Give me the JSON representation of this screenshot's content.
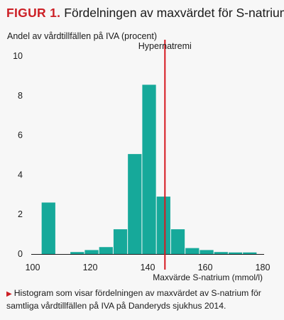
{
  "figure": {
    "label": "FIGUR 1.",
    "title": "Fördelningen av maxvärdet för S-natrium",
    "caption_marker": "▶",
    "caption": "Histogram som visar fördelningen av maxvärdet av S-natrium för samtliga vårdtillfällen på IVA på Danderyds sjukhus 2014."
  },
  "colors": {
    "bars": "#16a99a",
    "threshold": "#d71920",
    "accent": "#cc1f25"
  },
  "chart_data": {
    "type": "bar",
    "title": "",
    "ylabel": "Andel av vårdtillfällen på IVA (procent)",
    "xlabel": "Maxvärde S-natrium (mmol/l)",
    "xlim": [
      100,
      180
    ],
    "ylim": [
      0,
      10
    ],
    "x_ticks": [
      100,
      120,
      140,
      160,
      180
    ],
    "y_ticks": [
      0,
      2,
      4,
      6,
      8,
      10
    ],
    "bin_width": 5,
    "bins": [
      {
        "start": 103,
        "value": 2.6
      },
      {
        "start": 113,
        "value": 0.1
      },
      {
        "start": 118,
        "value": 0.2
      },
      {
        "start": 123,
        "value": 0.35
      },
      {
        "start": 128,
        "value": 1.25
      },
      {
        "start": 133,
        "value": 5.05
      },
      {
        "start": 138,
        "value": 8.55
      },
      {
        "start": 143,
        "value": 2.9
      },
      {
        "start": 148,
        "value": 1.25
      },
      {
        "start": 153,
        "value": 0.3
      },
      {
        "start": 158,
        "value": 0.2
      },
      {
        "start": 163,
        "value": 0.1
      },
      {
        "start": 168,
        "value": 0.08
      },
      {
        "start": 173,
        "value": 0.08
      }
    ],
    "threshold": {
      "x": 146,
      "label": "Hypernatremi"
    },
    "grid": false,
    "legend": "none"
  }
}
